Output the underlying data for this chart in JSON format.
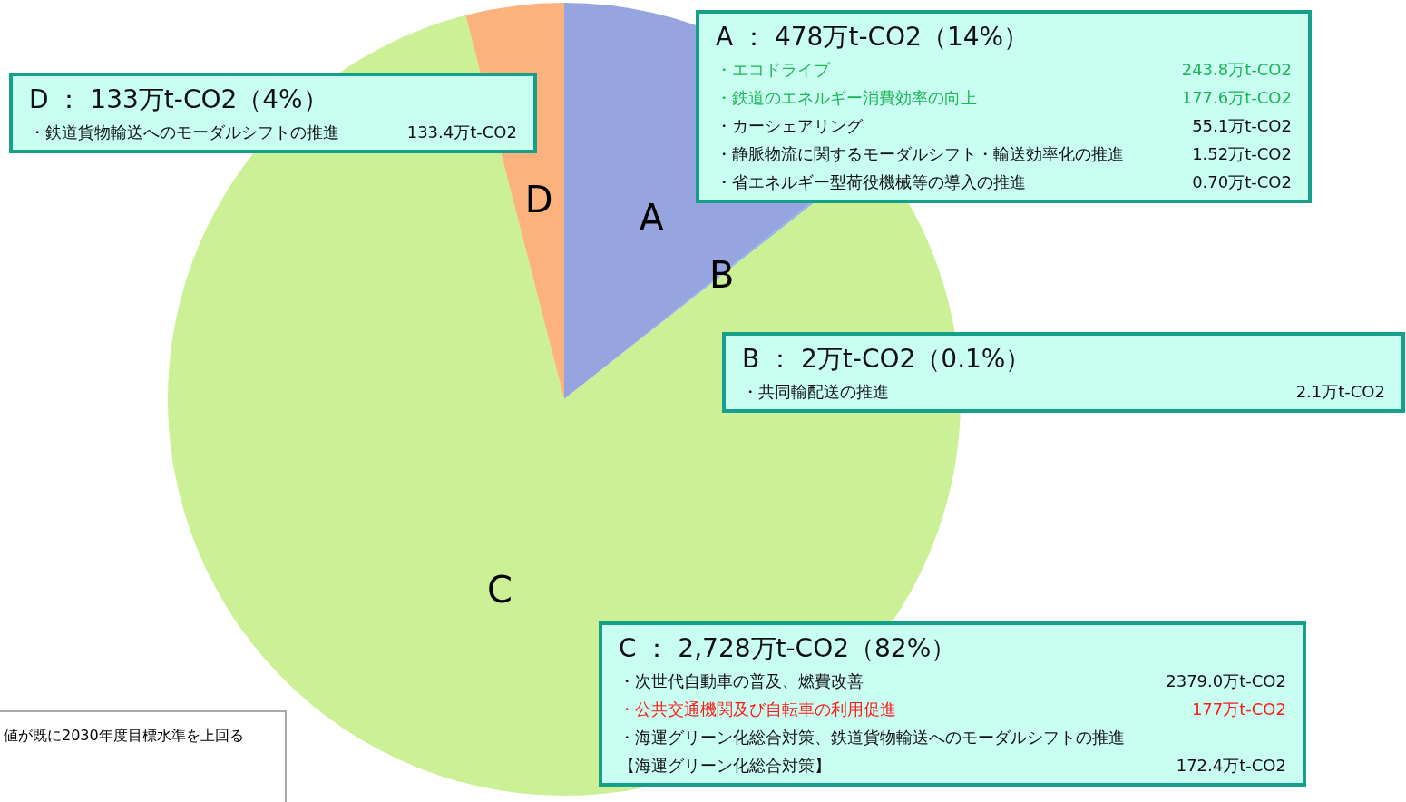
{
  "chart_data": {
    "type": "pie",
    "categories": [
      "A",
      "B",
      "C",
      "D"
    ],
    "values": [
      14.3,
      0.1,
      81.6,
      4.0
    ],
    "colors": [
      "#96a5df",
      "#8eb4e3",
      "#ccf095",
      "#fbb27c"
    ],
    "annotations": [
      "A ： 478万t-CO2（14%）",
      "・エコドライブ",
      "243.8万t-CO2",
      "・鉄道のエネルギー消費効率の向上",
      "177.6万t-CO2",
      "・カーシェアリング",
      "55.1万t-CO2",
      "・静脈物流に関するモーダルシフト・輸送効率化の推進",
      "1.52万t-CO2",
      "・省エネルギー型荷役機械等の導入の推進",
      "0.70万t-CO2",
      "B ： 2万t-CO2（0.1%）",
      "・共同輸配送の推進",
      "2.1万t-CO2",
      "C ： 2,728万t-CO2（82%）",
      "・次世代自動車の普及、燃費改善",
      "2379.0万t-CO2",
      "・公共交通機関及び自転車の利用促進",
      "177万t-CO2",
      "・海運グリーン化総合対策、鉄道貨物輸送へのモーダルシフトの推進",
      "【海運グリーン化総合対策】",
      "172.4万t-CO2",
      "D ： 133万t-CO2（4%）",
      "・鉄道貨物輸送へのモーダルシフトの推進",
      "133.4万t-CO2",
      "値が既に2030年度目標水準を上回る"
    ]
  }
}
